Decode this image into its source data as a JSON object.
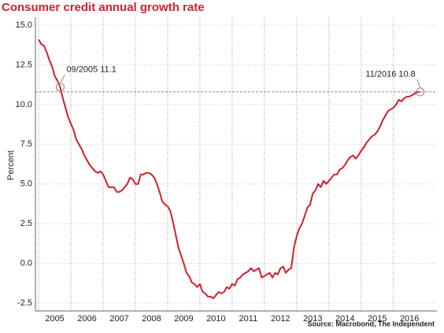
{
  "chart_data": {
    "type": "line",
    "title": "Consumer credit annual growth rate",
    "y_label": "Percent",
    "source": "Source: Macrobond, The Independent",
    "color": "#d0202e",
    "grid": true,
    "x": [
      2005,
      2005.083,
      2005.167,
      2005.25,
      2005.333,
      2005.417,
      2005.5,
      2005.583,
      2005.667,
      2005.75,
      2005.833,
      2005.917,
      2006,
      2006.083,
      2006.167,
      2006.25,
      2006.333,
      2006.417,
      2006.5,
      2006.583,
      2006.667,
      2006.75,
      2006.833,
      2006.917,
      2007,
      2007.083,
      2007.167,
      2007.25,
      2007.333,
      2007.417,
      2007.5,
      2007.583,
      2007.667,
      2007.75,
      2007.833,
      2007.917,
      2008,
      2008.083,
      2008.167,
      2008.25,
      2008.333,
      2008.417,
      2008.5,
      2008.583,
      2008.667,
      2008.75,
      2008.833,
      2008.917,
      2009,
      2009.083,
      2009.167,
      2009.25,
      2009.333,
      2009.417,
      2009.5,
      2009.583,
      2009.667,
      2009.75,
      2009.833,
      2009.917,
      2010,
      2010.083,
      2010.167,
      2010.25,
      2010.333,
      2010.417,
      2010.5,
      2010.583,
      2010.667,
      2010.75,
      2010.833,
      2010.917,
      2011,
      2011.083,
      2011.167,
      2011.25,
      2011.333,
      2011.417,
      2011.5,
      2011.583,
      2011.667,
      2011.75,
      2011.833,
      2011.917,
      2012,
      2012.083,
      2012.167,
      2012.25,
      2012.333,
      2012.417,
      2012.5,
      2012.583,
      2012.667,
      2012.75,
      2012.833,
      2012.917,
      2013,
      2013.083,
      2013.167,
      2013.25,
      2013.333,
      2013.417,
      2013.5,
      2013.583,
      2013.667,
      2013.75,
      2013.833,
      2013.917,
      2014,
      2014.083,
      2014.167,
      2014.25,
      2014.333,
      2014.417,
      2014.5,
      2014.583,
      2014.667,
      2014.75,
      2014.833,
      2014.917,
      2015,
      2015.083,
      2015.167,
      2015.25,
      2015.333,
      2015.417,
      2015.5,
      2015.583,
      2015.667,
      2015.75,
      2015.833,
      2015.917,
      2016,
      2016.083,
      2016.167,
      2016.25,
      2016.333,
      2016.417,
      2016.5,
      2016.583,
      2016.667,
      2016.75,
      2016.833
    ],
    "values": [
      14.1,
      13.8,
      13.7,
      13.3,
      12.8,
      12.4,
      11.8,
      11.5,
      11.1,
      10.4,
      9.8,
      9.2,
      8.8,
      8.4,
      7.8,
      7.5,
      7.2,
      6.8,
      6.5,
      6.2,
      6.0,
      5.8,
      5.7,
      5.8,
      5.6,
      5.2,
      4.8,
      4.8,
      4.8,
      4.5,
      4.5,
      4.6,
      4.8,
      5.0,
      5.4,
      5.3,
      5.0,
      5.0,
      5.6,
      5.6,
      5.7,
      5.7,
      5.6,
      5.4,
      5.0,
      4.5,
      3.9,
      3.7,
      3.6,
      3.3,
      2.6,
      1.8,
      1.0,
      0.5,
      0.0,
      -0.6,
      -0.8,
      -1.2,
      -1.3,
      -1.5,
      -1.3,
      -1.8,
      -1.9,
      -2.1,
      -2.1,
      -2.2,
      -2.0,
      -1.8,
      -1.9,
      -1.8,
      -1.5,
      -1.6,
      -1.3,
      -1.4,
      -1.0,
      -0.9,
      -0.7,
      -0.6,
      -0.5,
      -0.3,
      -0.5,
      -0.4,
      -0.3,
      -0.9,
      -0.8,
      -0.7,
      -0.6,
      -0.9,
      -0.6,
      -0.7,
      -0.3,
      -0.2,
      -0.6,
      -0.4,
      -0.3,
      1.0,
      1.7,
      2.2,
      2.5,
      3.0,
      3.5,
      3.7,
      4.4,
      4.6,
      5.0,
      4.8,
      5.2,
      5.0,
      5.2,
      5.4,
      5.6,
      5.6,
      5.9,
      6.0,
      6.2,
      6.5,
      6.7,
      6.8,
      6.6,
      6.8,
      7.1,
      7.3,
      7.6,
      7.8,
      8.0,
      8.1,
      8.3,
      8.6,
      9.0,
      9.3,
      9.6,
      9.7,
      9.8,
      10.0,
      10.3,
      10.2,
      10.4,
      10.5,
      10.5,
      10.6,
      10.7,
      10.8,
      10.8
    ],
    "xlim": [
      2004.9,
      2017.35
    ],
    "xticks": [
      2005,
      2006,
      2007,
      2008,
      2009,
      2010,
      2011,
      2012,
      2013,
      2014,
      2015,
      2016
    ],
    "ylim": [
      -3,
      15.5
    ],
    "yticks": [
      -2.5,
      {
        "value": 0,
        "label": "0.0"
      },
      2.5,
      {
        "value": 5,
        "label": "5.0"
      },
      7.5,
      {
        "value": 10,
        "label": "10.0"
      },
      12.5,
      {
        "value": 15,
        "label": "15.0"
      }
    ],
    "annotations": [
      {
        "text": "09/2005 11.1",
        "x": 2005.667,
        "y": 11.1
      },
      {
        "text": "11/2016 10.8",
        "x": 2016.833,
        "y": 10.8
      }
    ]
  }
}
